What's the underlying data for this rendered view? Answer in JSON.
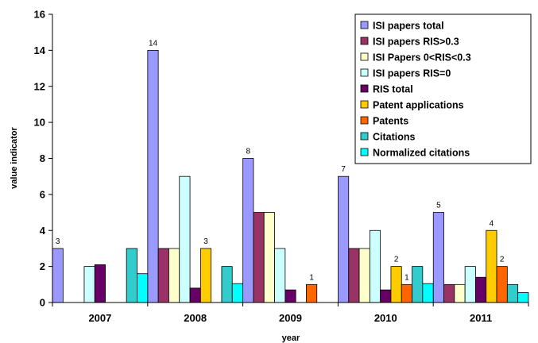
{
  "chart_data": {
    "type": "bar",
    "categories": [
      "2007",
      "2008",
      "2009",
      "2010",
      "2011"
    ],
    "xlabel": "year",
    "ylabel": "value indicator",
    "ylim": [
      0,
      16
    ],
    "yticks": [
      0,
      2,
      4,
      6,
      8,
      10,
      12,
      14,
      16
    ],
    "grid": false,
    "legend_position": "top-right",
    "series": [
      {
        "name": "ISI papers total",
        "color": "#9999ff",
        "values": [
          3,
          14,
          8,
          7,
          5
        ],
        "labels": [
          "3",
          "14",
          "8",
          "7",
          "5"
        ]
      },
      {
        "name": "ISI papers RIS>0.3",
        "color": "#993366",
        "values": [
          0,
          3,
          5,
          3,
          1
        ]
      },
      {
        "name": "ISI Papers 0<RIS<0.3",
        "color": "#ffffcc",
        "values": [
          0,
          3,
          5,
          3,
          1
        ]
      },
      {
        "name": "ISI papers RIS=0",
        "color": "#ccffff",
        "values": [
          2,
          7,
          3,
          4,
          2
        ]
      },
      {
        "name": "RIS total",
        "color": "#660066",
        "values": [
          2.1,
          0.8,
          0.7,
          0.7,
          1.4
        ]
      },
      {
        "name": "Patent applications",
        "color": "#ffcc00",
        "values": [
          0,
          3,
          0,
          2,
          4
        ],
        "labels": [
          "",
          "3",
          "",
          "2",
          "4"
        ]
      },
      {
        "name": "Patents",
        "color": "#ff6600",
        "values": [
          0,
          0,
          1,
          1,
          2
        ],
        "labels": [
          "",
          "",
          "1",
          "1",
          "2"
        ]
      },
      {
        "name": "Citations",
        "color": "#33cccc",
        "values": [
          3,
          2,
          0,
          2,
          1
        ]
      },
      {
        "name": "Normalized citations",
        "color": "#00ffff",
        "values": [
          1.6,
          1.05,
          0,
          1.05,
          0.55
        ]
      }
    ]
  }
}
